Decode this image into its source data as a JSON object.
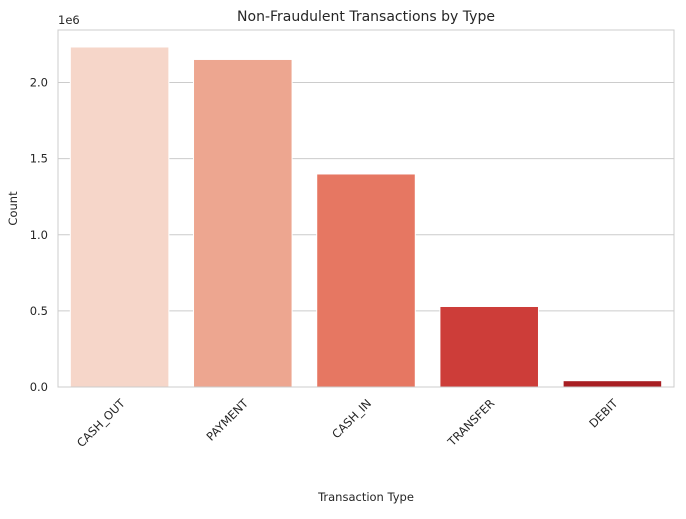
{
  "chart_data": {
    "type": "bar",
    "title": "Non-Fraudulent Transactions by Type",
    "xlabel": "Transaction Type",
    "ylabel": "Count",
    "y_offset_label": "1e6",
    "categories": [
      "CASH_OUT",
      "PAYMENT",
      "CASH_IN",
      "TRANSFER",
      "DEBIT"
    ],
    "values": [
      2233384,
      2151495,
      1399284,
      528812,
      41432
    ],
    "colors": [
      "#f6d6c9",
      "#eda690",
      "#e67762",
      "#cd3d39",
      "#a81e22"
    ],
    "ylim": [
      0,
      2345053
    ],
    "yticks": [
      0,
      500000,
      1000000,
      1500000,
      2000000
    ],
    "ytick_labels": [
      "0.0",
      "0.5",
      "1.0",
      "1.5",
      "2.0"
    ],
    "grid": "horizontal"
  }
}
